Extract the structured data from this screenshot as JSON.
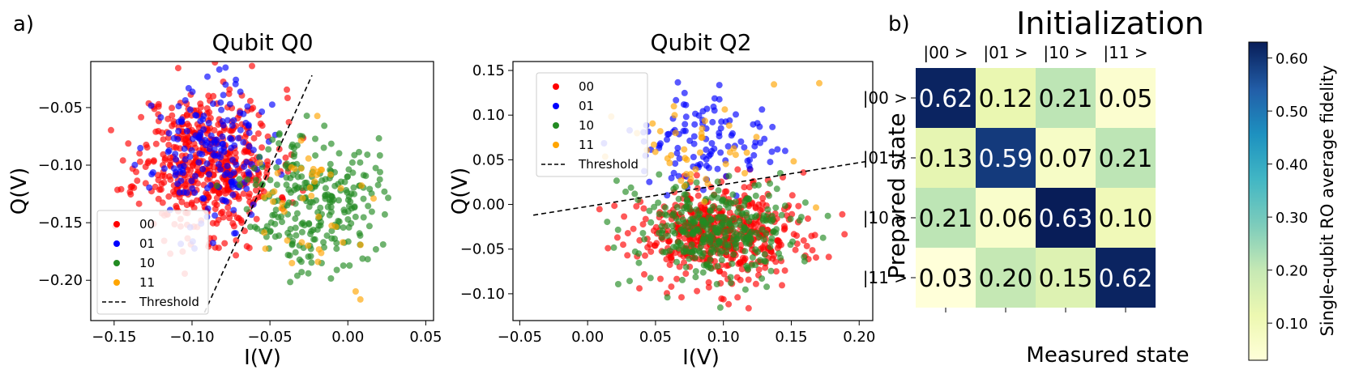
{
  "panel_labels": {
    "a": "a)",
    "b": "b)"
  },
  "chart_data": [
    {
      "type": "scatter",
      "title": "Qubit Q0",
      "xlabel": "I(V)",
      "ylabel": "Q(V)",
      "xlim": [
        -0.165,
        0.055
      ],
      "ylim": [
        -0.235,
        -0.01
      ],
      "xticks": [
        -0.15,
        -0.1,
        -0.05,
        0.0,
        0.05
      ],
      "xtick_labels": [
        "−0.15",
        "−0.10",
        "−0.05",
        "0.00",
        "0.05"
      ],
      "yticks": [
        -0.05,
        -0.1,
        -0.15,
        -0.2
      ],
      "ytick_labels": [
        "−0.05",
        "−0.10",
        "−0.15",
        "−0.20"
      ],
      "legend_placement": "lower-left",
      "threshold": {
        "name": "Threshold",
        "points": [
          [
            -0.092,
            -0.228
          ],
          [
            -0.023,
            -0.022
          ]
        ],
        "color": "#000000",
        "style": "dashed"
      },
      "series": [
        {
          "name": "00",
          "color": "#ff0000",
          "cluster": {
            "cx": -0.09,
            "cy": -0.098,
            "sx": 0.022,
            "sy": 0.032,
            "n": 520,
            "seed": 11
          }
        },
        {
          "name": "01",
          "color": "#0000ff",
          "cluster": {
            "cx": -0.088,
            "cy": -0.092,
            "sx": 0.018,
            "sy": 0.03,
            "n": 180,
            "seed": 23
          }
        },
        {
          "name": "10",
          "color": "#228b22",
          "cluster": {
            "cx": -0.022,
            "cy": -0.13,
            "sx": 0.02,
            "sy": 0.03,
            "n": 260,
            "seed": 37
          }
        },
        {
          "name": "11",
          "color": "#ffa500",
          "cluster": {
            "cx": -0.02,
            "cy": -0.135,
            "sx": 0.022,
            "sy": 0.032,
            "n": 45,
            "seed": 41
          }
        }
      ]
    },
    {
      "type": "scatter",
      "title": "Qubit Q2",
      "xlabel": "I(V)",
      "ylabel": "Q(V)",
      "xlim": [
        -0.055,
        0.21
      ],
      "ylim": [
        -0.13,
        0.16
      ],
      "xticks": [
        -0.05,
        0.0,
        0.05,
        0.1,
        0.15,
        0.2
      ],
      "xtick_labels": [
        "−0.05",
        "0.00",
        "0.05",
        "0.10",
        "0.15",
        "0.20"
      ],
      "yticks": [
        0.15,
        0.1,
        0.05,
        0.0,
        -0.05,
        -0.1
      ],
      "ytick_labels": [
        "0.15",
        "0.10",
        "0.05",
        "0.00",
        "−0.05",
        "−0.10"
      ],
      "legend_placement": "upper-left",
      "threshold": {
        "name": "Threshold",
        "points": [
          [
            -0.04,
            -0.012
          ],
          [
            0.205,
            0.048
          ]
        ],
        "color": "#000000",
        "style": "dashed"
      },
      "series": [
        {
          "name": "00",
          "color": "#ff0000",
          "cluster": {
            "cx": 0.1,
            "cy": -0.035,
            "sx": 0.032,
            "sy": 0.027,
            "n": 520,
            "seed": 53
          }
        },
        {
          "name": "01",
          "color": "#0000ff",
          "cluster": {
            "cx": 0.085,
            "cy": 0.065,
            "sx": 0.025,
            "sy": 0.027,
            "n": 110,
            "seed": 67
          }
        },
        {
          "name": "10",
          "color": "#228b22",
          "cluster": {
            "cx": 0.095,
            "cy": -0.03,
            "sx": 0.03,
            "sy": 0.027,
            "n": 330,
            "seed": 71
          }
        },
        {
          "name": "11",
          "color": "#ffa500",
          "cluster": {
            "cx": 0.085,
            "cy": 0.06,
            "sx": 0.035,
            "sy": 0.03,
            "n": 45,
            "seed": 83
          }
        }
      ]
    },
    {
      "type": "heatmap",
      "title": "Initialization",
      "xlabel": "Measured state",
      "ylabel": "Prepared state",
      "x_categories": [
        "|00 >",
        "|01 >",
        "|10 >",
        "|11 >"
      ],
      "y_categories": [
        "|00 >",
        "|01 >",
        "|10 >",
        "|11 >"
      ],
      "values": [
        [
          0.62,
          0.12,
          0.21,
          0.05
        ],
        [
          0.13,
          0.59,
          0.07,
          0.21
        ],
        [
          0.21,
          0.06,
          0.63,
          0.1
        ],
        [
          0.03,
          0.2,
          0.15,
          0.62
        ]
      ],
      "cell_labels": [
        [
          "0.62",
          "0.12",
          "0.21",
          "0.05"
        ],
        [
          "0.13",
          "0.59",
          "0.07",
          "0.21"
        ],
        [
          "0.21",
          "0.06",
          "0.63",
          "0.10"
        ],
        [
          "0.03",
          "0.20",
          "0.15",
          "0.62"
        ]
      ],
      "colormap": "YlGnBu",
      "colorbar": {
        "label": "Single-qubit RO average fidelity",
        "range": [
          0.03,
          0.63
        ],
        "ticks": [
          0.1,
          0.2,
          0.3,
          0.4,
          0.5,
          0.6
        ],
        "tick_labels": [
          "0.10",
          "0.20",
          "0.30",
          "0.40",
          "0.50",
          "0.60"
        ]
      }
    }
  ]
}
